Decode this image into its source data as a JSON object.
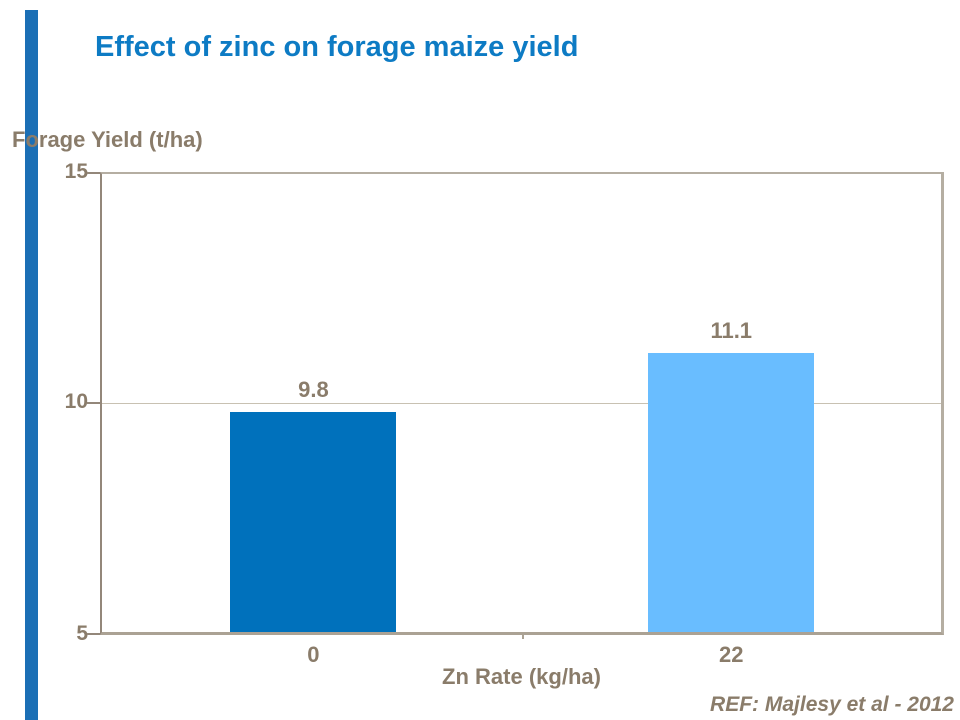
{
  "slide": {
    "title": "Effect of zinc on forage maize yield",
    "reference": "REF: Majlesy et al  - 2012"
  },
  "colors": {
    "title_blue": "#0d7bc4",
    "accent_strip_blue": "#1b6fb5",
    "label_brown": "#8a7c6a",
    "bar_dark_blue": "#0071bc",
    "bar_light_blue": "#69bdff",
    "axis_line": "#93877a",
    "frame_line": "#b5aea2",
    "gridline": "#c8c1b2"
  },
  "chart_data": {
    "type": "bar",
    "title": "Effect of zinc on forage maize yield",
    "categories": [
      "0",
      "22"
    ],
    "values": [
      9.8,
      11.1
    ],
    "value_labels": [
      "9.8",
      "11.1"
    ],
    "xlabel": "Zn Rate (kg/ha)",
    "ylabel": "Forage Yield (t/ha)",
    "ylim": [
      5,
      15
    ],
    "yticks": [
      15,
      10,
      5
    ],
    "grid": "single horizontal gridline at y=10",
    "legend": "none",
    "bar_colors": [
      "#0071bc",
      "#69bdff"
    ],
    "bar_centers_pct": [
      25.2,
      75.0
    ],
    "bar_width_pct": 19.8,
    "annotation": "REF: Majlesy et al  - 2012"
  }
}
